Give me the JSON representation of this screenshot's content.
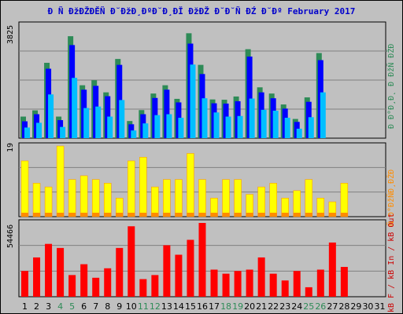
{
  "title": "Ð Ñ ÐžÐŽÐĚÑ Ð˘ÐžÐ¸ÐºÐ˘Ð¸ÐĬ ÐžÐŽ Ð˘Ð˘Ñ ÐŹ Ð˘Ðº February 2017",
  "colors": {
    "visits": "#2e8b57",
    "pages": "#0000ff",
    "hits": "#00bfff",
    "bandwidth_top": "#ffff00",
    "bandwidth_base": "#ff8c00",
    "kb": "#ff0000",
    "axis": "#000000",
    "grid": "#808080",
    "plot_bg": "#c0c0c0",
    "weekend_label": "#2e8b57"
  },
  "right_legend": {
    "top": "Ð Ð°Ð¸Ð˛ Ð ÐžÑ ÐŽÐ",
    "middle": "Ñ Ð°ÐžÑÐ¸ÐŽÐ",
    "bottom": "kB F / kB In / kB Out"
  },
  "chart_data": [
    {
      "type": "bar",
      "title": "",
      "ylabel": "3825",
      "categories": [
        "1",
        "2",
        "3",
        "4",
        "5",
        "6",
        "7",
        "8",
        "9",
        "10",
        "11",
        "12",
        "13",
        "14",
        "15",
        "16",
        "17",
        "18",
        "19",
        "20",
        "21",
        "22",
        "23",
        "24",
        "25",
        "26",
        "27",
        "28",
        "29",
        "30",
        "31"
      ],
      "weekend_days": [
        "4",
        "5",
        "11",
        "12",
        "18",
        "19",
        "25",
        "26"
      ],
      "ylim": [
        0,
        3825
      ],
      "series": [
        {
          "key": "visits",
          "values": [
            730,
            940,
            2550,
            730,
            3450,
            1790,
            1960,
            1550,
            2680,
            580,
            950,
            1510,
            1790,
            1330,
            3550,
            2480,
            1310,
            1300,
            1410,
            3010,
            1720,
            1510,
            1140,
            650,
            1380,
            2880,
            null,
            null,
            null,
            null,
            null
          ]
        },
        {
          "key": "pages",
          "values": [
            570,
            810,
            2350,
            610,
            3150,
            1640,
            1770,
            1420,
            2480,
            470,
            810,
            1360,
            1640,
            1210,
            3200,
            2170,
            1180,
            1170,
            1250,
            2760,
            1550,
            1350,
            1000,
            550,
            1230,
            2640,
            null,
            null,
            null,
            null,
            null
          ]
        },
        {
          "key": "hits",
          "values": [
            360,
            520,
            1480,
            380,
            2040,
            1020,
            1070,
            730,
            1290,
            260,
            500,
            780,
            810,
            690,
            2490,
            1350,
            870,
            730,
            750,
            1340,
            960,
            930,
            690,
            320,
            710,
            1550,
            null,
            null,
            null,
            null,
            null
          ]
        }
      ]
    },
    {
      "type": "bar",
      "title": "",
      "ylabel": "19",
      "categories": [
        "1",
        "2",
        "3",
        "4",
        "5",
        "6",
        "7",
        "8",
        "9",
        "10",
        "11",
        "12",
        "13",
        "14",
        "15",
        "16",
        "17",
        "18",
        "19",
        "20",
        "21",
        "22",
        "23",
        "24",
        "25",
        "26",
        "27",
        "28",
        "29",
        "30",
        "31"
      ],
      "ylim": [
        0,
        19
      ],
      "series": [
        {
          "key": "bandwidth_top",
          "values": [
            15,
            9,
            8,
            19,
            10,
            11,
            10,
            9,
            5,
            15,
            16,
            8,
            10,
            10,
            17,
            10,
            5,
            10,
            10,
            6,
            8,
            9,
            5,
            7,
            10,
            5,
            4,
            9,
            null,
            null,
            null
          ]
        },
        {
          "key": "bandwidth_base",
          "values": [
            1,
            1,
            1,
            1,
            1,
            1,
            1,
            1,
            1,
            1,
            1,
            1,
            1,
            1,
            1,
            1,
            1,
            1,
            1,
            1,
            1,
            1,
            1,
            1,
            1,
            1,
            1,
            1,
            null,
            null,
            null
          ]
        }
      ]
    },
    {
      "type": "bar",
      "title": "",
      "ylabel": "54466",
      "categories": [
        "1",
        "2",
        "3",
        "4",
        "5",
        "6",
        "7",
        "8",
        "9",
        "10",
        "11",
        "12",
        "13",
        "14",
        "15",
        "16",
        "17",
        "18",
        "19",
        "20",
        "21",
        "22",
        "23",
        "24",
        "25",
        "26",
        "27",
        "28",
        "29",
        "30",
        "31"
      ],
      "ylim": [
        0,
        54466
      ],
      "series": [
        {
          "key": "kb",
          "values": [
            19000,
            29000,
            39000,
            36000,
            16000,
            24000,
            14000,
            21000,
            36000,
            52000,
            13000,
            16000,
            38000,
            31000,
            42000,
            54466,
            20000,
            17000,
            19000,
            20000,
            29000,
            17000,
            12000,
            19000,
            7000,
            20000,
            40000,
            22000,
            null,
            null,
            null
          ]
        }
      ]
    }
  ]
}
